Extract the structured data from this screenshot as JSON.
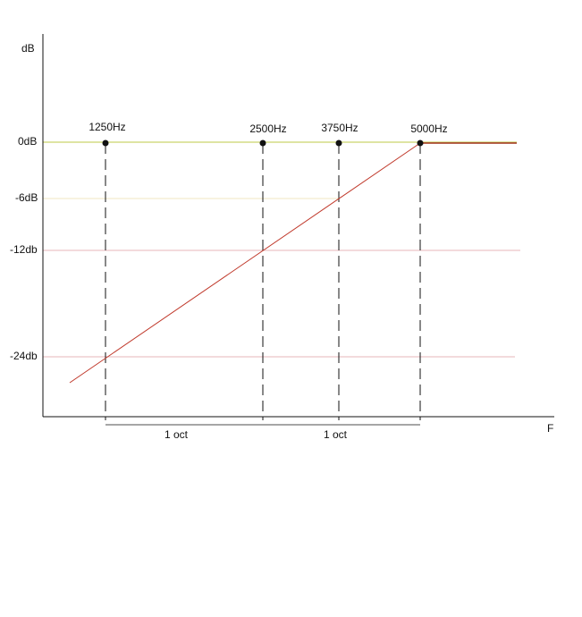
{
  "axes": {
    "y_label": "dB",
    "x_label": "F"
  },
  "levels": [
    "0dB",
    "-6dB",
    "-12db",
    "-24db"
  ],
  "frequencies": [
    "1250Hz",
    "2500Hz",
    "3750Hz",
    "5000Hz"
  ],
  "spans": [
    "1 oct",
    "1 oct"
  ]
}
